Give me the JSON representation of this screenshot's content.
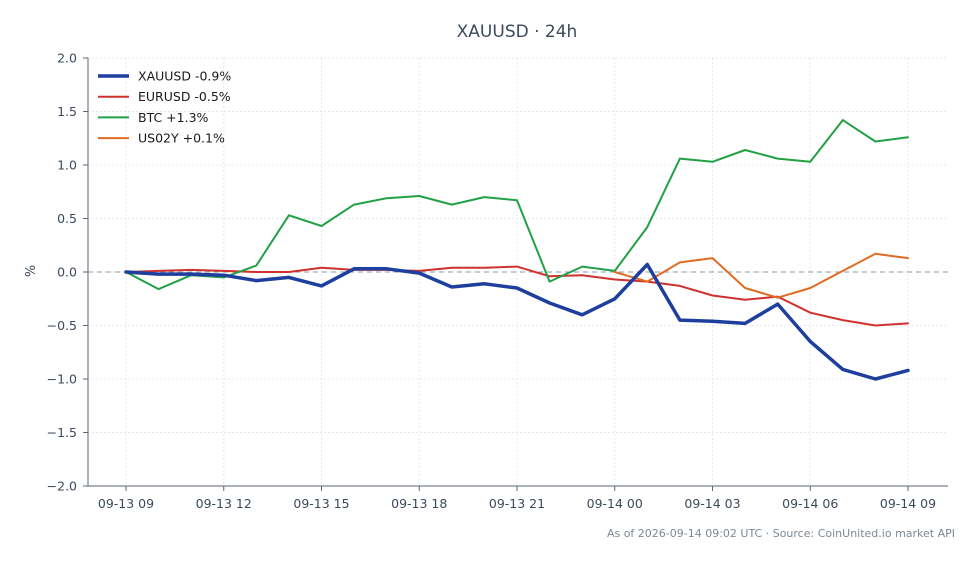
{
  "chart_data": {
    "type": "line",
    "title": "XAUUSD · 24h",
    "xlabel": "",
    "ylabel": "%",
    "ylim": [
      -2.0,
      2.0
    ],
    "yticks": [
      "2.0",
      "1.5",
      "1.0",
      "0.5",
      "0.0",
      "−0.5",
      "−1.0",
      "−1.5",
      "−2.0"
    ],
    "ytick_values": [
      2.0,
      1.5,
      1.0,
      0.5,
      0.0,
      -0.5,
      -1.0,
      -1.5,
      -2.0
    ],
    "x": [
      "09-13 09",
      "09-13 10",
      "09-13 11",
      "09-13 12",
      "09-13 13",
      "09-13 14",
      "09-13 15",
      "09-13 16",
      "09-13 17",
      "09-13 18",
      "09-13 19",
      "09-13 20",
      "09-13 21",
      "09-13 22",
      "09-13 23",
      "09-14 00",
      "09-14 01",
      "09-14 02",
      "09-14 03",
      "09-14 04",
      "09-14 05",
      "09-14 06",
      "09-14 07",
      "09-14 08",
      "09-14 09"
    ],
    "xtick_labels": [
      "09-13 09",
      "09-13 12",
      "09-13 15",
      "09-13 18",
      "09-13 21",
      "09-14 00",
      "09-14 03",
      "09-14 06",
      "09-14 09"
    ],
    "grid": true,
    "legend_position": "top-left",
    "series": [
      {
        "name": "XAUUSD -0.9%",
        "color": "#1f3f9e",
        "width": "thick",
        "values": [
          0.0,
          -0.02,
          -0.02,
          -0.03,
          -0.08,
          -0.05,
          -0.13,
          0.03,
          0.03,
          -0.01,
          -0.14,
          -0.11,
          -0.15,
          -0.29,
          -0.4,
          -0.25,
          0.07,
          -0.45,
          -0.46,
          -0.48,
          -0.3,
          -0.65,
          -0.91,
          -1.0,
          -0.92
        ]
      },
      {
        "name": "EURUSD -0.5%",
        "color": "#d0312d",
        "width": "normal",
        "values": [
          0.0,
          0.01,
          0.02,
          0.01,
          0.0,
          0.0,
          0.04,
          0.02,
          0.02,
          0.01,
          0.04,
          0.04,
          0.05,
          -0.04,
          -0.03,
          -0.07,
          -0.09,
          -0.13,
          -0.22,
          -0.26,
          -0.23,
          -0.38,
          -0.45,
          -0.5,
          -0.48
        ]
      },
      {
        "name": "BTC +1.3%",
        "color": "#22a045",
        "width": "normal",
        "values": [
          0.0,
          -0.16,
          -0.03,
          -0.05,
          0.06,
          0.53,
          0.43,
          0.63,
          0.69,
          0.71,
          0.63,
          0.7,
          0.67,
          -0.09,
          0.05,
          0.01,
          0.42,
          1.06,
          1.03,
          1.14,
          1.06,
          1.03,
          1.42,
          1.22,
          1.26
        ]
      },
      {
        "name": "US02Y +0.1%",
        "color": "#e06c22",
        "width": "normal",
        "values": [
          null,
          null,
          null,
          null,
          null,
          null,
          null,
          null,
          null,
          null,
          null,
          null,
          null,
          null,
          null,
          0.0,
          -0.09,
          0.09,
          0.13,
          -0.15,
          -0.24,
          -0.15,
          0.01,
          0.17,
          0.13
        ]
      }
    ]
  },
  "footer": "As of 2026-09-14 09:02 UTC · Source: CoinUnited.io market API"
}
